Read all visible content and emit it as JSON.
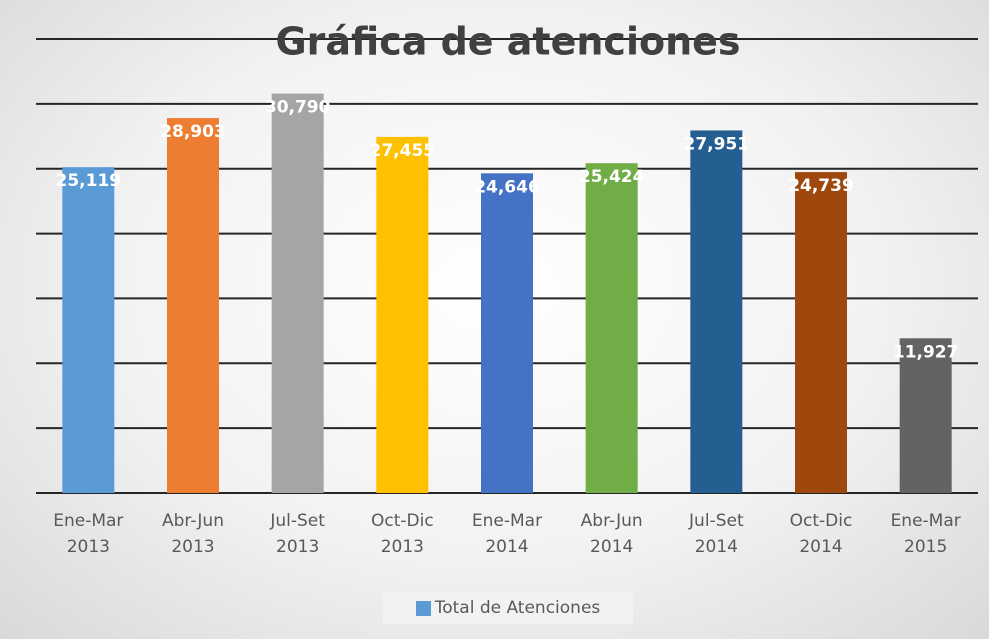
{
  "chart_data": {
    "type": "bar",
    "title": "Gráfica de atenciones",
    "categories": [
      "Ene-Mar 2013",
      "Abr-Jun 2013",
      "Jul-Set 2013",
      "Oct-Dic 2013",
      "Ene-Mar 2014",
      "Abr-Jun 2014",
      "Jul-Set 2014",
      "Oct-Dic 2014",
      "Ene-Mar 2015"
    ],
    "series": [
      {
        "name": "Total de Atenciones",
        "color": "#5b9bd5",
        "values": [
          25119,
          28903,
          30790,
          27455,
          24646,
          25424,
          27951,
          24739,
          11927
        ],
        "value_labels": [
          "25,119",
          "28,903",
          "30,790",
          "27,455",
          "24,646",
          "25,424",
          "27,951",
          "24,739",
          "11,927"
        ],
        "colors": [
          "#5b9bd5",
          "#ed7d31",
          "#a5a5a5",
          "#ffc000",
          "#4472c4",
          "#70ad47",
          "#255e91",
          "#9e480e",
          "#636363"
        ]
      }
    ],
    "ylim": [
      0,
      35000
    ],
    "yticks": [
      0,
      5000,
      10000,
      15000,
      20000,
      25000,
      30000,
      35000
    ],
    "grid": true
  }
}
